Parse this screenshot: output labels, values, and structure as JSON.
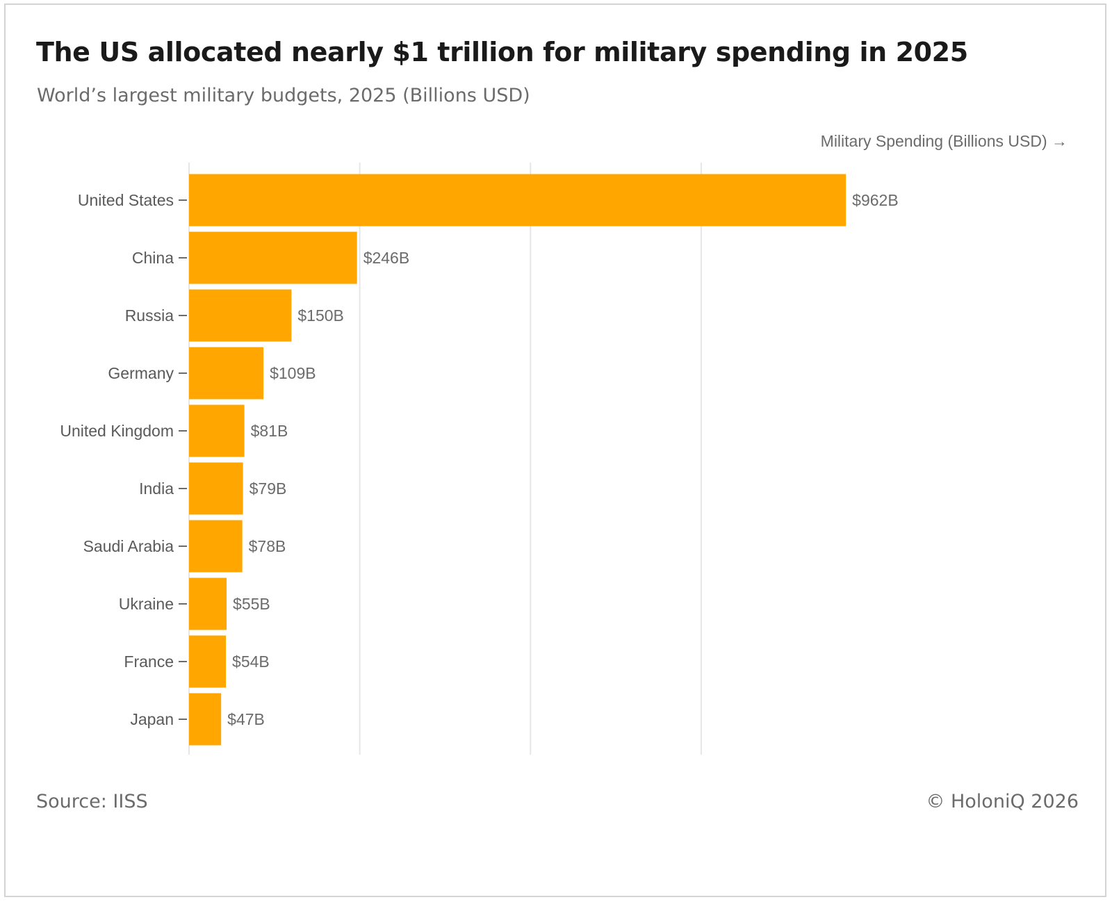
{
  "title": "The US allocated nearly $1 trillion for military spending in 2025",
  "subtitle": "World’s largest military budgets, 2025 (Billions USD)",
  "source": "Source: IISS",
  "copyright": "© HoloniQ 2026",
  "colors": {
    "bar": "#FFA600",
    "grid": "#e6e6e6",
    "tick": "#6b6b6b"
  },
  "chart_data": {
    "type": "bar",
    "orientation": "horizontal",
    "xlabel": "Military Spending (Billions USD) →",
    "xlim": [
      0,
      1000
    ],
    "gridlines_at": [
      0,
      250,
      500,
      750,
      1000
    ],
    "grid": true,
    "categories": [
      "United States",
      "China",
      "Russia",
      "Germany",
      "United Kingdom",
      "India",
      "Saudi Arabia",
      "Ukraine",
      "France",
      "Japan"
    ],
    "values": [
      962,
      246,
      150,
      109,
      81,
      79,
      78,
      55,
      54,
      47
    ],
    "value_labels": [
      "$962B",
      "$246B",
      "$150B",
      "$109B",
      "$81B",
      "$79B",
      "$78B",
      "$55B",
      "$54B",
      "$47B"
    ]
  }
}
